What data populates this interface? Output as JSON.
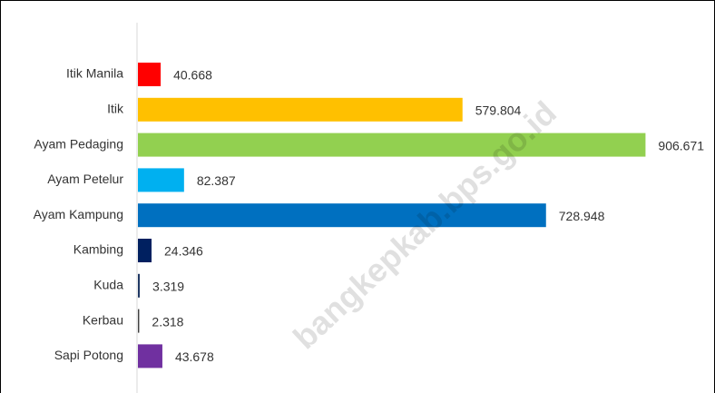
{
  "chart_data": {
    "type": "barh",
    "categories": [
      "Itik Manila",
      "Itik",
      "Ayam Pedaging",
      "Ayam Petelur",
      "Ayam Kampung",
      "Kambing",
      "Kuda",
      "Kerbau",
      "Sapi Potong"
    ],
    "values": [
      40668,
      579804,
      906671,
      82387,
      728948,
      24346,
      3319,
      2318,
      43678
    ],
    "value_labels": [
      "40.668",
      "579.804",
      "906.671",
      "82.387",
      "728.948",
      "24.346",
      "3.319",
      "2.318",
      "43.678"
    ],
    "colors": [
      "#ff0000",
      "#ffc000",
      "#92d050",
      "#00b0f0",
      "#0070c0",
      "#002060",
      "#203864",
      "#404040",
      "#7030a0"
    ],
    "xlim": [
      0,
      1000000
    ],
    "watermark": "bangkepkab.bps.go.id"
  }
}
